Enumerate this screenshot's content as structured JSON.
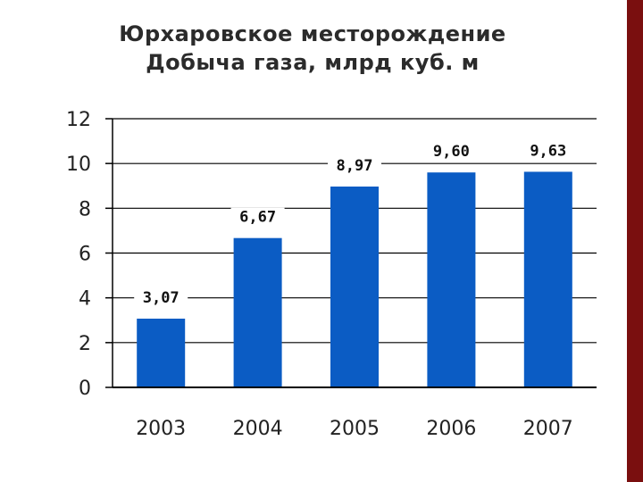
{
  "colors": {
    "bar": "#0b5cc4",
    "right_bar": "#7a0f0f",
    "grid": "#000000",
    "text": "#222222"
  },
  "chart_data": {
    "type": "bar",
    "title": "Юрхаровское месторождение",
    "subtitle": "Добыча газа, млрд куб. м",
    "categories": [
      "2003",
      "2004",
      "2005",
      "2006",
      "2007"
    ],
    "values": [
      3.07,
      6.67,
      8.97,
      9.6,
      9.63
    ],
    "data_labels": [
      "3,07",
      "6,67",
      "8,97",
      "9,60",
      "9,63"
    ],
    "yticks": [
      "0",
      "2",
      "4",
      "6",
      "8",
      "10",
      "12"
    ],
    "ylim": [
      0,
      12
    ],
    "grid": true,
    "legend": "none"
  }
}
